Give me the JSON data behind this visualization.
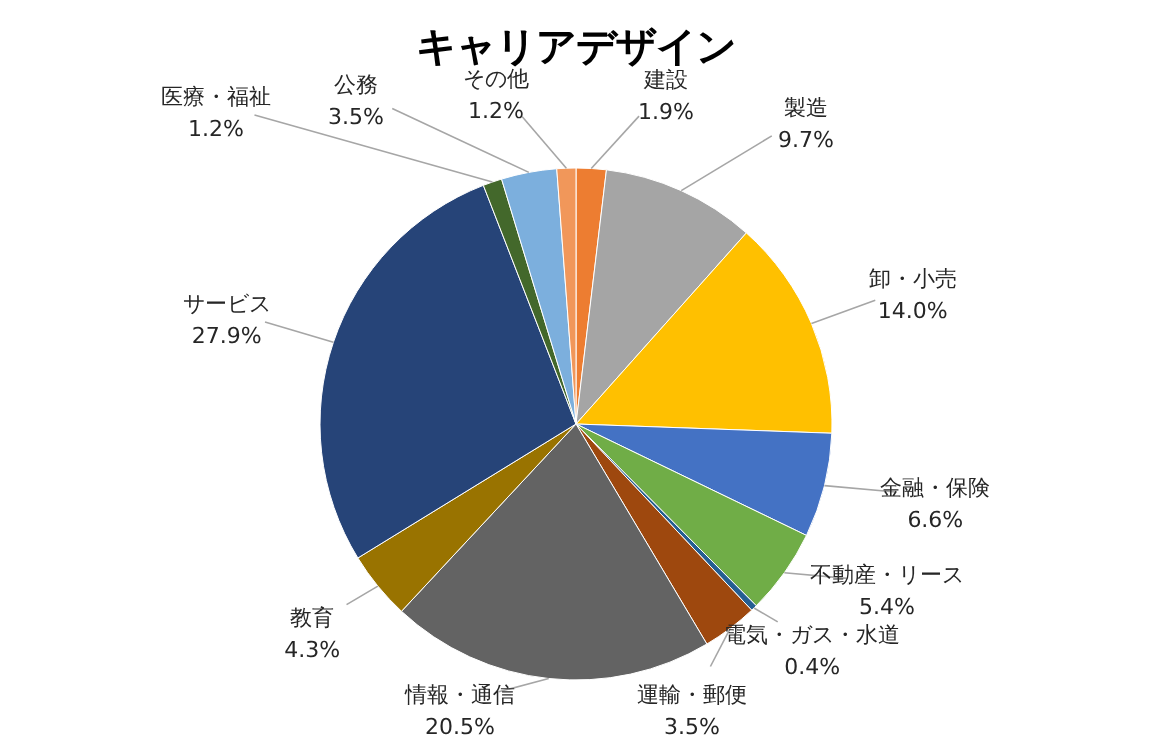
{
  "chart_data": {
    "type": "pie",
    "title": "キャリアデザイン",
    "categories": [
      "建設",
      "製造",
      "卸・小売",
      "金融・保険",
      "不動産・リース",
      "電気・ガス・水道",
      "運輸・郵便",
      "情報・通信",
      "教育",
      "サービス",
      "医療・福祉",
      "公務",
      "その他"
    ],
    "values": [
      1.9,
      9.7,
      14.0,
      6.6,
      5.4,
      0.4,
      3.5,
      20.5,
      4.3,
      27.9,
      1.2,
      3.5,
      1.2
    ],
    "value_labels": [
      "1.9%",
      "9.7%",
      "14.0%",
      "6.6%",
      "5.4%",
      "0.4%",
      "3.5%",
      "20.5%",
      "4.3%",
      "27.9%",
      "1.2%",
      "3.5%",
      "1.2%"
    ],
    "colors": [
      "#ed7d31",
      "#a5a5a5",
      "#ffc000",
      "#4472c4",
      "#70ad47",
      "#255e91",
      "#9e480e",
      "#636363",
      "#997300",
      "#264478",
      "#43682b",
      "#7cafdd",
      "#f1975a"
    ]
  }
}
